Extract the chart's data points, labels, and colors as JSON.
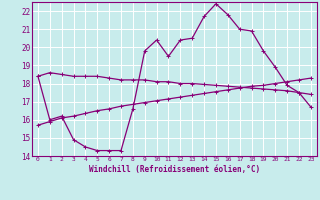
{
  "xlabel": "Windchill (Refroidissement éolien,°C)",
  "bg_color": "#c8ecec",
  "grid_color": "#ffffff",
  "line_color": "#880077",
  "spine_color": "#880077",
  "xlim": [
    -0.5,
    23.5
  ],
  "ylim": [
    14,
    22.5
  ],
  "yticks": [
    14,
    15,
    16,
    17,
    18,
    19,
    20,
    21,
    22
  ],
  "xticks": [
    0,
    1,
    2,
    3,
    4,
    5,
    6,
    7,
    8,
    9,
    10,
    11,
    12,
    13,
    14,
    15,
    16,
    17,
    18,
    19,
    20,
    21,
    22,
    23
  ],
  "line1_x": [
    0,
    1,
    2,
    3,
    4,
    5,
    6,
    7,
    8,
    9,
    10,
    11,
    12,
    13,
    14,
    15,
    16,
    17,
    18,
    19,
    20,
    21,
    22,
    23
  ],
  "line1_y": [
    18.4,
    18.6,
    18.5,
    18.4,
    18.4,
    18.4,
    18.3,
    18.2,
    18.2,
    18.2,
    18.1,
    18.1,
    18.0,
    18.0,
    17.95,
    17.9,
    17.85,
    17.8,
    17.75,
    17.7,
    17.65,
    17.6,
    17.5,
    17.4
  ],
  "line2_x": [
    0,
    1,
    2,
    3,
    4,
    5,
    6,
    7,
    8,
    9,
    10,
    11,
    12,
    13,
    14,
    15,
    16,
    17,
    18,
    19,
    20,
    21,
    22,
    23
  ],
  "line2_y": [
    15.7,
    15.9,
    16.1,
    16.2,
    16.35,
    16.5,
    16.6,
    16.75,
    16.85,
    16.95,
    17.05,
    17.15,
    17.25,
    17.35,
    17.45,
    17.55,
    17.65,
    17.75,
    17.85,
    17.9,
    18.0,
    18.1,
    18.2,
    18.3
  ],
  "line3_x": [
    0,
    1,
    2,
    3,
    4,
    5,
    6,
    7,
    8,
    9,
    10,
    11,
    12,
    13,
    14,
    15,
    16,
    17,
    18,
    19,
    20,
    21,
    22,
    23
  ],
  "line3_y": [
    18.4,
    16.0,
    16.2,
    14.9,
    14.5,
    14.3,
    14.3,
    14.3,
    16.6,
    19.8,
    20.4,
    19.5,
    20.4,
    20.5,
    21.7,
    22.4,
    21.8,
    21.0,
    20.9,
    19.8,
    18.9,
    17.9,
    17.5,
    16.7
  ]
}
